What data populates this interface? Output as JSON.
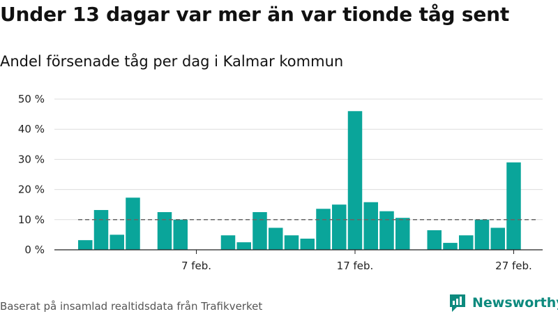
{
  "title": "Under 13 dagar var mer än var tionde tåg sent",
  "subtitle": "Andel försenade tåg per dag i Kalmar kommun",
  "footer": "Baserat på insamlad realtidsdata från Trafikverket",
  "brand": "Newsworthy",
  "colors": {
    "bar": "#0aa59a",
    "grid": "#dddddd",
    "axis": "#222222",
    "reference_line": "#666666",
    "brand": "#0d8a7e"
  },
  "chart_data": {
    "type": "bar",
    "x": [
      "2022-01-31",
      "2022-02-01",
      "2022-02-02",
      "2022-02-03",
      "2022-02-04",
      "2022-02-05",
      "2022-02-06",
      "2022-02-07",
      "2022-02-08",
      "2022-02-09",
      "2022-02-10",
      "2022-02-11",
      "2022-02-12",
      "2022-02-13",
      "2022-02-14",
      "2022-02-15",
      "2022-02-16",
      "2022-02-17",
      "2022-02-18",
      "2022-02-19",
      "2022-02-20",
      "2022-02-21",
      "2022-02-22",
      "2022-02-23",
      "2022-02-24",
      "2022-02-25",
      "2022-02-26",
      "2022-02-27",
      "2022-02-28"
    ],
    "values": [
      3.2,
      13.2,
      5.0,
      17.3,
      null,
      12.5,
      10.0,
      null,
      null,
      4.8,
      2.5,
      12.5,
      7.3,
      4.8,
      3.7,
      13.6,
      15.0,
      46.0,
      15.8,
      12.8,
      10.6,
      null,
      6.5,
      2.3,
      4.8,
      10.0,
      7.3,
      29.0,
      null
    ],
    "reference_line": 10,
    "xticks": [
      {
        "date": "2022-02-07",
        "label": "7 feb."
      },
      {
        "date": "2022-02-17",
        "label": "17 feb."
      },
      {
        "date": "2022-02-27",
        "label": "27 feb."
      }
    ],
    "yticks": [
      0,
      10,
      20,
      30,
      40,
      50
    ],
    "ytick_labels": [
      "0 %",
      "10 %",
      "20 %",
      "30 %",
      "40 %",
      "50 %"
    ],
    "ylim": [
      0,
      50
    ],
    "grid": true
  }
}
